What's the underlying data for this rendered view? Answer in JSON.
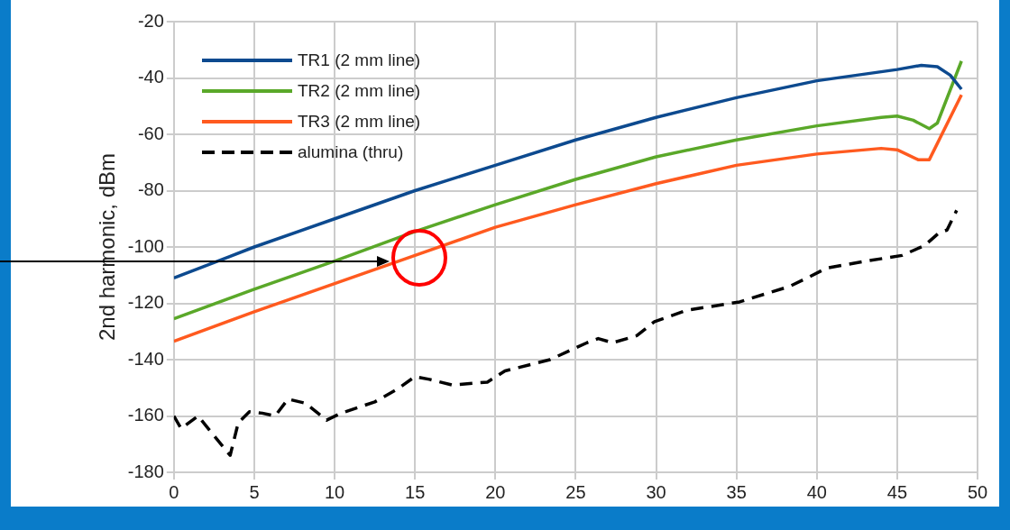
{
  "chart_data": {
    "type": "line",
    "ylabel": "2nd harmonic, dBm",
    "xlim": [
      0,
      50
    ],
    "xticks": [
      0,
      5,
      10,
      15,
      20,
      25,
      30,
      35,
      40,
      45,
      50
    ],
    "ylim": [
      -180,
      -20
    ],
    "yticks": [
      -180,
      -160,
      -140,
      -120,
      -100,
      -80,
      -60,
      -40,
      -20
    ],
    "grid": true,
    "legend": "top left",
    "marker": "none",
    "series": [
      {
        "name": "TR1 (2 mm line)",
        "color": "#0d4a8f",
        "line_style": "solid",
        "x": [
          0,
          5,
          10,
          15,
          20,
          25,
          30,
          35,
          40,
          45,
          46.5,
          47.5,
          48.3,
          49
        ],
        "values": [
          -111,
          -100,
          -90,
          -80,
          -71,
          -62,
          -54,
          -47,
          -41,
          -37,
          -35.5,
          -36,
          -39,
          -44
        ]
      },
      {
        "name": "TR2 (2 mm line)",
        "color": "#5aa829",
        "line_style": "solid",
        "x": [
          0,
          5,
          10,
          15,
          20,
          25,
          30,
          35,
          40,
          44,
          45,
          46,
          47,
          47.5,
          49
        ],
        "values": [
          -125.5,
          -115,
          -105,
          -94.5,
          -85,
          -76,
          -68,
          -62,
          -57,
          -54,
          -53.5,
          -55,
          -58,
          -56,
          -34
        ]
      },
      {
        "name": "TR3 (2 mm line)",
        "color": "#ff5a1f",
        "line_style": "solid",
        "x": [
          0,
          5,
          10,
          15,
          20,
          25,
          30,
          35,
          40,
          44,
          45,
          46.3,
          47,
          49
        ],
        "values": [
          -133.5,
          -123,
          -113,
          -103,
          -93,
          -85,
          -77.5,
          -71,
          -67,
          -65,
          -65.5,
          -69,
          -69,
          -46
        ]
      },
      {
        "name": "alumina (thru)",
        "color": "#000000",
        "line_style": "dashed",
        "x": [
          0,
          0.45,
          1.5,
          3.5,
          4,
          4.7,
          5.5,
          6.3,
          7.1,
          8.2,
          9.5,
          10.4,
          12.5,
          13.9,
          15,
          15.9,
          17.3,
          19.5,
          20.6,
          23.4,
          25.7,
          26.4,
          27.3,
          28.8,
          29.9,
          31.9,
          35.2,
          38.3,
          39.4,
          40.6,
          43.1,
          45.3,
          46.7,
          47.6,
          48.1,
          48.7
        ],
        "values": [
          -160,
          -164.5,
          -160,
          -174,
          -162.5,
          -158.5,
          -159,
          -160,
          -154,
          -155.5,
          -161.5,
          -159,
          -155,
          -150.5,
          -146,
          -147,
          -149,
          -148,
          -144,
          -140,
          -134,
          -132.5,
          -134,
          -131.5,
          -126.5,
          -122.5,
          -119.5,
          -114,
          -111,
          -107.5,
          -105,
          -103,
          -99.5,
          -95,
          -94,
          -87
        ]
      }
    ]
  }
}
